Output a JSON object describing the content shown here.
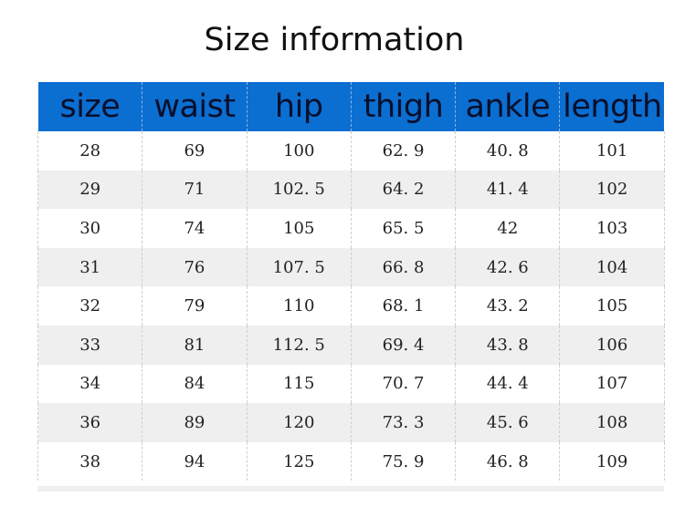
{
  "title": "Size information",
  "header_color": "#0b6ed1",
  "columns": [
    "size",
    "waist",
    "hip",
    "thigh",
    "ankle",
    "length"
  ],
  "rows": [
    [
      "28",
      "69",
      "100",
      "62. 9",
      "40. 8",
      "101"
    ],
    [
      "29",
      "71",
      "102. 5",
      "64. 2",
      "41. 4",
      "102"
    ],
    [
      "30",
      "74",
      "105",
      "65. 5",
      "42",
      "103"
    ],
    [
      "31",
      "76",
      "107. 5",
      "66. 8",
      "42. 6",
      "104"
    ],
    [
      "32",
      "79",
      "110",
      "68. 1",
      "43. 2",
      "105"
    ],
    [
      "33",
      "81",
      "112. 5",
      "69. 4",
      "43. 8",
      "106"
    ],
    [
      "34",
      "84",
      "115",
      "70. 7",
      "44. 4",
      "107"
    ],
    [
      "36",
      "89",
      "120",
      "73. 3",
      "45. 6",
      "108"
    ],
    [
      "38",
      "94",
      "125",
      "75. 9",
      "46. 8",
      "109"
    ]
  ]
}
